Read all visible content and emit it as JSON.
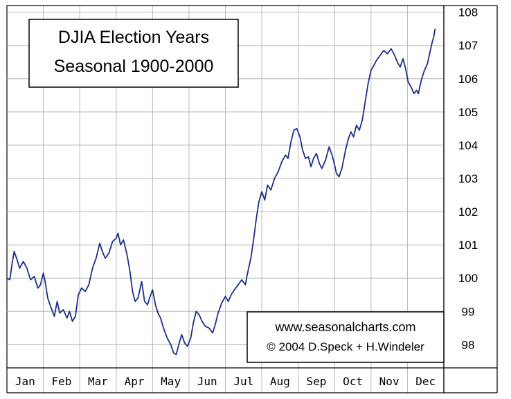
{
  "chart_data": {
    "type": "line",
    "title_lines": [
      "DJIA Election Years",
      "Seasonal 1900-2000"
    ],
    "credit_lines": [
      "www.seasonalcharts.com",
      "© 2004 D.Speck + H.Windeler"
    ],
    "categories": [
      "Jan",
      "Feb",
      "Mar",
      "Apr",
      "May",
      "Jun",
      "Jul",
      "Aug",
      "Sep",
      "Oct",
      "Nov",
      "Dec"
    ],
    "y_ticks": [
      98,
      99,
      100,
      101,
      102,
      103,
      104,
      105,
      106,
      107,
      108
    ],
    "ylim": [
      97.3,
      108.2
    ],
    "xlim": [
      0,
      12
    ],
    "grid": true,
    "y_axis_position": "right",
    "line_color": "#1a2f8a",
    "series": [
      {
        "points": [
          [
            0.0,
            100.0
          ],
          [
            0.08,
            99.95
          ],
          [
            0.15,
            100.5
          ],
          [
            0.2,
            100.8
          ],
          [
            0.28,
            100.55
          ],
          [
            0.35,
            100.3
          ],
          [
            0.45,
            100.5
          ],
          [
            0.55,
            100.3
          ],
          [
            0.65,
            99.95
          ],
          [
            0.75,
            100.05
          ],
          [
            0.85,
            99.7
          ],
          [
            0.92,
            99.8
          ],
          [
            1.0,
            100.15
          ],
          [
            1.05,
            99.9
          ],
          [
            1.12,
            99.4
          ],
          [
            1.2,
            99.15
          ],
          [
            1.3,
            98.85
          ],
          [
            1.38,
            99.3
          ],
          [
            1.45,
            98.95
          ],
          [
            1.55,
            99.05
          ],
          [
            1.65,
            98.8
          ],
          [
            1.72,
            99.0
          ],
          [
            1.8,
            98.7
          ],
          [
            1.88,
            98.85
          ],
          [
            1.96,
            99.5
          ],
          [
            2.05,
            99.7
          ],
          [
            2.15,
            99.6
          ],
          [
            2.25,
            99.8
          ],
          [
            2.35,
            100.3
          ],
          [
            2.45,
            100.6
          ],
          [
            2.55,
            101.05
          ],
          [
            2.62,
            100.8
          ],
          [
            2.7,
            100.6
          ],
          [
            2.8,
            100.75
          ],
          [
            2.9,
            101.1
          ],
          [
            3.0,
            101.2
          ],
          [
            3.05,
            101.35
          ],
          [
            3.12,
            101.0
          ],
          [
            3.2,
            101.15
          ],
          [
            3.3,
            100.7
          ],
          [
            3.38,
            100.2
          ],
          [
            3.45,
            99.6
          ],
          [
            3.52,
            99.3
          ],
          [
            3.6,
            99.4
          ],
          [
            3.7,
            99.9
          ],
          [
            3.78,
            99.3
          ],
          [
            3.86,
            99.2
          ],
          [
            3.92,
            99.4
          ],
          [
            4.0,
            99.65
          ],
          [
            4.08,
            99.2
          ],
          [
            4.15,
            98.95
          ],
          [
            4.22,
            98.8
          ],
          [
            4.3,
            98.5
          ],
          [
            4.4,
            98.2
          ],
          [
            4.5,
            98.0
          ],
          [
            4.58,
            97.75
          ],
          [
            4.65,
            97.7
          ],
          [
            4.72,
            98.0
          ],
          [
            4.8,
            98.3
          ],
          [
            4.88,
            98.05
          ],
          [
            4.96,
            97.95
          ],
          [
            5.05,
            98.2
          ],
          [
            5.12,
            98.65
          ],
          [
            5.2,
            99.0
          ],
          [
            5.28,
            98.9
          ],
          [
            5.36,
            98.7
          ],
          [
            5.45,
            98.55
          ],
          [
            5.55,
            98.5
          ],
          [
            5.65,
            98.35
          ],
          [
            5.72,
            98.6
          ],
          [
            5.8,
            98.95
          ],
          [
            5.9,
            99.25
          ],
          [
            6.0,
            99.45
          ],
          [
            6.08,
            99.3
          ],
          [
            6.16,
            99.5
          ],
          [
            6.25,
            99.65
          ],
          [
            6.35,
            99.8
          ],
          [
            6.45,
            99.95
          ],
          [
            6.55,
            99.8
          ],
          [
            6.6,
            100.1
          ],
          [
            6.7,
            100.6
          ],
          [
            6.78,
            101.2
          ],
          [
            6.85,
            101.8
          ],
          [
            6.92,
            102.3
          ],
          [
            7.0,
            102.6
          ],
          [
            7.08,
            102.35
          ],
          [
            7.16,
            102.8
          ],
          [
            7.25,
            102.65
          ],
          [
            7.35,
            103.0
          ],
          [
            7.45,
            103.2
          ],
          [
            7.55,
            103.5
          ],
          [
            7.65,
            103.7
          ],
          [
            7.72,
            103.6
          ],
          [
            7.8,
            104.1
          ],
          [
            7.88,
            104.45
          ],
          [
            7.96,
            104.5
          ],
          [
            8.05,
            104.25
          ],
          [
            8.12,
            103.85
          ],
          [
            8.2,
            103.6
          ],
          [
            8.28,
            103.65
          ],
          [
            8.35,
            103.35
          ],
          [
            8.42,
            103.6
          ],
          [
            8.5,
            103.75
          ],
          [
            8.58,
            103.45
          ],
          [
            8.65,
            103.3
          ],
          [
            8.75,
            103.55
          ],
          [
            8.85,
            103.95
          ],
          [
            8.93,
            103.7
          ],
          [
            9.0,
            103.4
          ],
          [
            9.05,
            103.15
          ],
          [
            9.12,
            103.05
          ],
          [
            9.2,
            103.3
          ],
          [
            9.3,
            103.85
          ],
          [
            9.38,
            104.2
          ],
          [
            9.45,
            104.4
          ],
          [
            9.52,
            104.25
          ],
          [
            9.6,
            104.6
          ],
          [
            9.68,
            104.45
          ],
          [
            9.76,
            104.75
          ],
          [
            9.84,
            105.3
          ],
          [
            9.92,
            105.85
          ],
          [
            10.0,
            106.25
          ],
          [
            10.08,
            106.4
          ],
          [
            10.15,
            106.55
          ],
          [
            10.25,
            106.7
          ],
          [
            10.35,
            106.85
          ],
          [
            10.45,
            106.75
          ],
          [
            10.55,
            106.9
          ],
          [
            10.65,
            106.7
          ],
          [
            10.72,
            106.5
          ],
          [
            10.8,
            106.35
          ],
          [
            10.88,
            106.6
          ],
          [
            10.95,
            106.3
          ],
          [
            11.02,
            105.9
          ],
          [
            11.1,
            105.75
          ],
          [
            11.18,
            105.55
          ],
          [
            11.25,
            105.65
          ],
          [
            11.3,
            105.55
          ],
          [
            11.38,
            105.95
          ],
          [
            11.45,
            106.2
          ],
          [
            11.55,
            106.45
          ],
          [
            11.62,
            106.8
          ],
          [
            11.68,
            107.1
          ],
          [
            11.72,
            107.25
          ],
          [
            11.76,
            107.5
          ]
        ]
      }
    ]
  }
}
